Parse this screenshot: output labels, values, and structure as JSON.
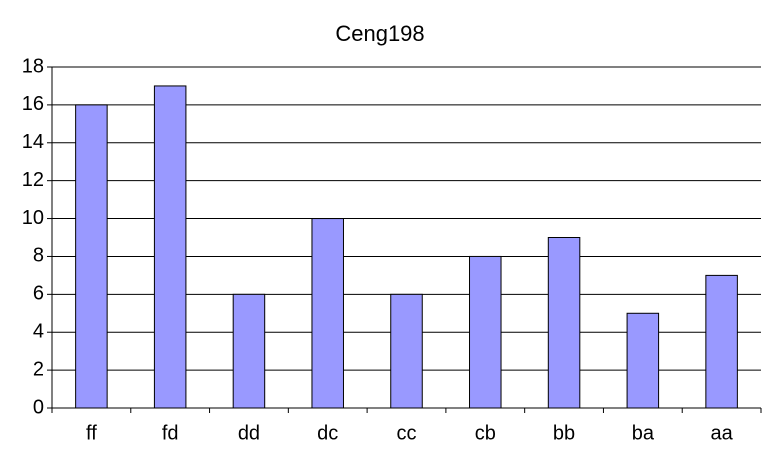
{
  "chart_data": {
    "type": "bar",
    "title": "Ceng198",
    "categories": [
      "ff",
      "fd",
      "dd",
      "dc",
      "cc",
      "cb",
      "bb",
      "ba",
      "aa"
    ],
    "values": [
      16,
      17,
      6,
      10,
      6,
      8,
      9,
      5,
      7
    ],
    "color": "#9999ff",
    "ylim": [
      0,
      18
    ],
    "yticks": [
      0,
      2,
      4,
      6,
      8,
      10,
      12,
      14,
      16,
      18
    ],
    "grid": true
  }
}
